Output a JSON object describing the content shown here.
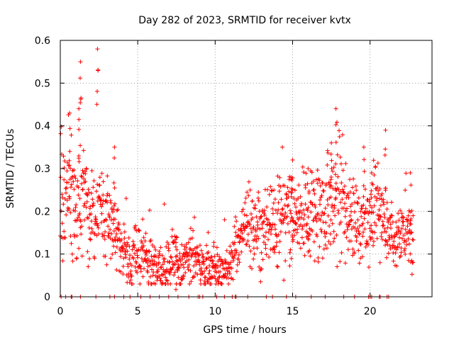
{
  "chart_data": {
    "type": "scatter",
    "title": "Day 282 of 2023, SRMTID for receiver kvtx",
    "xlabel": "GPS time / hours",
    "ylabel": "SRMTID / TECUs",
    "xlim": [
      0,
      24
    ],
    "ylim": [
      0,
      0.6
    ],
    "xticks": [
      0,
      5,
      10,
      15,
      20
    ],
    "xtick_labels": [
      "0",
      "5",
      "10",
      "15",
      "20"
    ],
    "yticks": [
      0,
      0.1,
      0.2,
      0.3,
      0.4,
      0.5,
      0.6
    ],
    "ytick_labels": [
      "0",
      "0.1",
      "0.2",
      "0.3",
      "0.4",
      "0.5",
      "0.6"
    ],
    "grid": true,
    "marker": "plus",
    "color": "#ff0000",
    "series": [
      {
        "name": "SRMTID",
        "trend": [
          [
            0.0,
            0.22
          ],
          [
            0.5,
            0.25
          ],
          [
            1.0,
            0.2
          ],
          [
            1.5,
            0.23
          ],
          [
            2.0,
            0.19
          ],
          [
            2.5,
            0.2
          ],
          [
            3.0,
            0.18
          ],
          [
            3.5,
            0.16
          ],
          [
            4.0,
            0.12
          ],
          [
            4.5,
            0.08
          ],
          [
            5.0,
            0.09
          ],
          [
            5.5,
            0.09
          ],
          [
            6.0,
            0.07
          ],
          [
            6.5,
            0.07
          ],
          [
            7.0,
            0.08
          ],
          [
            7.5,
            0.08
          ],
          [
            8.0,
            0.08
          ],
          [
            8.5,
            0.08
          ],
          [
            9.0,
            0.07
          ],
          [
            9.5,
            0.06
          ],
          [
            10.0,
            0.06
          ],
          [
            10.5,
            0.06
          ],
          [
            11.0,
            0.07
          ],
          [
            11.5,
            0.13
          ],
          [
            12.0,
            0.17
          ],
          [
            12.5,
            0.16
          ],
          [
            13.0,
            0.15
          ],
          [
            13.5,
            0.15
          ],
          [
            14.0,
            0.17
          ],
          [
            14.5,
            0.19
          ],
          [
            15.0,
            0.18
          ],
          [
            15.5,
            0.18
          ],
          [
            16.0,
            0.19
          ],
          [
            16.5,
            0.19
          ],
          [
            17.0,
            0.2
          ],
          [
            17.5,
            0.23
          ],
          [
            18.0,
            0.23
          ],
          [
            18.5,
            0.21
          ],
          [
            19.0,
            0.18
          ],
          [
            19.5,
            0.18
          ],
          [
            20.0,
            0.19
          ],
          [
            20.5,
            0.2
          ],
          [
            21.0,
            0.15
          ],
          [
            21.5,
            0.12
          ],
          [
            22.0,
            0.15
          ],
          [
            22.5,
            0.14
          ],
          [
            22.8,
            0.13
          ]
        ],
        "peaks": [
          [
            1.3,
            0.55
          ],
          [
            2.4,
            0.58
          ],
          [
            0.6,
            0.43
          ],
          [
            1.2,
            0.44
          ],
          [
            3.5,
            0.35
          ],
          [
            17.8,
            0.44
          ],
          [
            17.5,
            0.36
          ],
          [
            16.0,
            0.3
          ],
          [
            19.6,
            0.35
          ],
          [
            20.1,
            0.29
          ],
          [
            21.0,
            0.39
          ],
          [
            22.6,
            0.29
          ],
          [
            15.0,
            0.32
          ],
          [
            14.9,
            0.28
          ],
          [
            7.5,
            0.14
          ]
        ],
        "zero_points_x": [
          0.05,
          0.35,
          0.7,
          0.75,
          1.3,
          2.3,
          3.2,
          3.5,
          4.1,
          4.5,
          5.2,
          5.8,
          6.4,
          7.0,
          7.6,
          8.3,
          8.9,
          9.0,
          9.2,
          10.1,
          10.6,
          11.1,
          11.3,
          11.35,
          12.1,
          13.3,
          13.7,
          14.6,
          15.2,
          16.2,
          17.1,
          18.3,
          19.0,
          19.9,
          20.0,
          20.1,
          20.6,
          20.65,
          21.1,
          21.2
        ]
      }
    ]
  }
}
